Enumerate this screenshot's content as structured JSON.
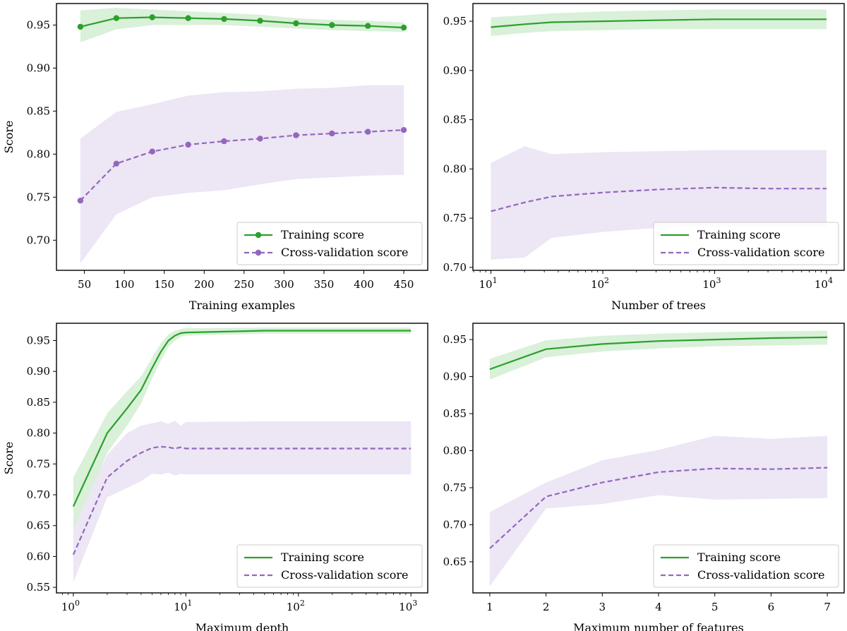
{
  "colors": {
    "train": "#2ca02c",
    "train_band": "#d9f0d9",
    "cv": "#9467bd",
    "cv_band": "#ece6f5"
  },
  "chart_data": [
    {
      "id": "training-examples",
      "type": "line",
      "xscale": "linear",
      "xlabel": "Training examples",
      "ylabel": "Score",
      "xlim": [
        15,
        480
      ],
      "ylim": [
        0.665,
        0.975
      ],
      "xticks": [
        50,
        100,
        150,
        200,
        250,
        300,
        350,
        400,
        450
      ],
      "xtick_labels": [
        "50",
        "100",
        "150",
        "200",
        "250",
        "300",
        "350",
        "400",
        "450"
      ],
      "yticks": [
        0.7,
        0.75,
        0.8,
        0.85,
        0.9,
        0.95
      ],
      "ytick_labels": [
        "0.70",
        "0.75",
        "0.80",
        "0.85",
        "0.90",
        "0.95"
      ],
      "legend_position": "lower-right",
      "series": [
        {
          "name": "Training score",
          "style": "solid",
          "markers": true,
          "x": [
            45,
            90,
            135,
            180,
            225,
            270,
            315,
            360,
            405,
            450
          ],
          "y": [
            0.948,
            0.958,
            0.959,
            0.958,
            0.957,
            0.955,
            0.952,
            0.95,
            0.949,
            0.947
          ],
          "lower": [
            0.93,
            0.945,
            0.95,
            0.95,
            0.95,
            0.948,
            0.946,
            0.944,
            0.943,
            0.942
          ],
          "upper": [
            0.967,
            0.97,
            0.968,
            0.966,
            0.964,
            0.962,
            0.958,
            0.956,
            0.955,
            0.953
          ]
        },
        {
          "name": "Cross-validation score",
          "style": "dashed",
          "markers": true,
          "x": [
            45,
            90,
            135,
            180,
            225,
            270,
            315,
            360,
            405,
            450
          ],
          "y": [
            0.746,
            0.789,
            0.803,
            0.811,
            0.815,
            0.818,
            0.822,
            0.824,
            0.826,
            0.828
          ],
          "lower": [
            0.673,
            0.73,
            0.75,
            0.755,
            0.758,
            0.765,
            0.771,
            0.773,
            0.775,
            0.776
          ],
          "upper": [
            0.818,
            0.849,
            0.858,
            0.868,
            0.872,
            0.873,
            0.876,
            0.877,
            0.88,
            0.88
          ]
        }
      ]
    },
    {
      "id": "number-of-trees",
      "type": "line",
      "xscale": "log",
      "xlabel": "Number of trees",
      "ylabel": "",
      "xlim": [
        6.9,
        14400
      ],
      "ylim": [
        0.697,
        0.968
      ],
      "xticks": [
        10,
        100,
        1000,
        10000
      ],
      "xtick_labels": [
        "10",
        "10",
        "10",
        "10"
      ],
      "xtick_exponents": [
        "1",
        "2",
        "3",
        "4"
      ],
      "yticks": [
        0.7,
        0.75,
        0.8,
        0.85,
        0.9,
        0.95
      ],
      "ytick_labels": [
        "0.70",
        "0.75",
        "0.80",
        "0.85",
        "0.90",
        "0.95"
      ],
      "legend_position": "lower-right",
      "series": [
        {
          "name": "Training score",
          "style": "solid",
          "markers": false,
          "x": [
            10,
            20,
            35,
            100,
            300,
            1000,
            3000,
            10000
          ],
          "y": [
            0.944,
            0.947,
            0.949,
            0.95,
            0.951,
            0.952,
            0.952,
            0.952
          ],
          "lower": [
            0.935,
            0.938,
            0.94,
            0.941,
            0.942,
            0.942,
            0.942,
            0.942
          ],
          "upper": [
            0.954,
            0.956,
            0.958,
            0.96,
            0.961,
            0.962,
            0.962,
            0.962
          ]
        },
        {
          "name": "Cross-validation score",
          "style": "dashed",
          "markers": false,
          "x": [
            10,
            20,
            35,
            100,
            300,
            1000,
            3000,
            10000
          ],
          "y": [
            0.757,
            0.766,
            0.772,
            0.776,
            0.779,
            0.781,
            0.78,
            0.78
          ],
          "lower": [
            0.708,
            0.71,
            0.73,
            0.736,
            0.74,
            0.742,
            0.741,
            0.741
          ],
          "upper": [
            0.806,
            0.823,
            0.815,
            0.817,
            0.818,
            0.819,
            0.819,
            0.819
          ]
        }
      ]
    },
    {
      "id": "maximum-depth",
      "type": "line",
      "xscale": "log",
      "xlabel": "Maximum depth",
      "ylabel": "Score",
      "xlim": [
        0.708,
        1410
      ],
      "ylim": [
        0.541,
        0.978
      ],
      "xticks": [
        1,
        10,
        100,
        1000
      ],
      "xtick_labels": [
        "10",
        "10",
        "10",
        "10"
      ],
      "xtick_exponents": [
        "0",
        "1",
        "2",
        "3"
      ],
      "yticks": [
        0.55,
        0.6,
        0.65,
        0.7,
        0.75,
        0.8,
        0.85,
        0.9,
        0.95
      ],
      "ytick_labels": [
        "0.55",
        "0.60",
        "0.65",
        "0.70",
        "0.75",
        "0.80",
        "0.85",
        "0.90",
        "0.95"
      ],
      "legend_position": "lower-right",
      "series": [
        {
          "name": "Training score",
          "style": "solid",
          "markers": false,
          "x": [
            1,
            2,
            3,
            4,
            5,
            6,
            7,
            8,
            9,
            10,
            50,
            1000
          ],
          "y": [
            0.681,
            0.8,
            0.84,
            0.87,
            0.905,
            0.932,
            0.95,
            0.958,
            0.962,
            0.963,
            0.966,
            0.966
          ],
          "lower": [
            0.635,
            0.768,
            0.812,
            0.848,
            0.888,
            0.918,
            0.94,
            0.95,
            0.956,
            0.958,
            0.961,
            0.961
          ],
          "upper": [
            0.728,
            0.832,
            0.868,
            0.892,
            0.922,
            0.946,
            0.96,
            0.966,
            0.969,
            0.97,
            0.971,
            0.971
          ]
        },
        {
          "name": "Cross-validation score",
          "style": "dashed",
          "markers": false,
          "x": [
            1,
            2,
            3,
            4,
            5,
            6,
            7,
            8,
            9,
            10,
            50,
            1000
          ],
          "y": [
            0.603,
            0.728,
            0.755,
            0.768,
            0.776,
            0.778,
            0.777,
            0.775,
            0.777,
            0.775,
            0.775,
            0.775
          ],
          "lower": [
            0.558,
            0.696,
            0.711,
            0.722,
            0.734,
            0.733,
            0.736,
            0.731,
            0.734,
            0.733,
            0.733,
            0.733
          ],
          "upper": [
            0.645,
            0.765,
            0.8,
            0.812,
            0.816,
            0.819,
            0.815,
            0.82,
            0.812,
            0.818,
            0.819,
            0.819
          ]
        }
      ]
    },
    {
      "id": "maximum-number-of-features",
      "type": "line",
      "xscale": "linear",
      "xlabel": "Maximum number of features",
      "ylabel": "",
      "xlim": [
        0.7,
        7.3
      ],
      "ylim": [
        0.608,
        0.972
      ],
      "xticks": [
        1,
        2,
        3,
        4,
        5,
        6,
        7
      ],
      "xtick_labels": [
        "1",
        "2",
        "3",
        "4",
        "5",
        "6",
        "7"
      ],
      "yticks": [
        0.65,
        0.7,
        0.75,
        0.8,
        0.85,
        0.9,
        0.95
      ],
      "ytick_labels": [
        "0.65",
        "0.70",
        "0.75",
        "0.80",
        "0.85",
        "0.90",
        "0.95"
      ],
      "legend_position": "lower-right",
      "series": [
        {
          "name": "Training score",
          "style": "solid",
          "markers": false,
          "x": [
            1,
            2,
            3,
            4,
            5,
            6,
            7
          ],
          "y": [
            0.91,
            0.937,
            0.944,
            0.948,
            0.95,
            0.952,
            0.953
          ],
          "lower": [
            0.896,
            0.926,
            0.934,
            0.938,
            0.941,
            0.942,
            0.943
          ],
          "upper": [
            0.924,
            0.949,
            0.955,
            0.958,
            0.96,
            0.961,
            0.962
          ]
        },
        {
          "name": "Cross-validation score",
          "style": "dashed",
          "markers": false,
          "x": [
            1,
            2,
            3,
            4,
            5,
            6,
            7
          ],
          "y": [
            0.668,
            0.738,
            0.757,
            0.771,
            0.776,
            0.775,
            0.777
          ],
          "lower": [
            0.617,
            0.722,
            0.728,
            0.74,
            0.734,
            0.735,
            0.736
          ],
          "upper": [
            0.717,
            0.757,
            0.787,
            0.801,
            0.82,
            0.816,
            0.82
          ]
        }
      ]
    }
  ]
}
